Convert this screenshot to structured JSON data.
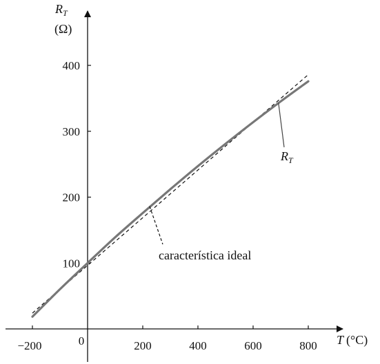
{
  "chart_data": {
    "type": "line",
    "x_axis": {
      "label_var": "T",
      "label_unit": "(°C)",
      "ticks": [
        {
          "value": -200,
          "label": "−200"
        },
        {
          "value": 0,
          "label": "0"
        },
        {
          "value": 200,
          "label": "200"
        },
        {
          "value": 400,
          "label": "400"
        },
        {
          "value": 600,
          "label": "600"
        },
        {
          "value": 800,
          "label": "800"
        }
      ],
      "range": [
        -200,
        800
      ]
    },
    "y_axis": {
      "label_var": "R",
      "label_sub": "T",
      "label_unit": "(Ω)",
      "ticks": [
        {
          "value": 100,
          "label": "100"
        },
        {
          "value": 200,
          "label": "200"
        },
        {
          "value": 300,
          "label": "300"
        },
        {
          "value": 400,
          "label": "400"
        }
      ],
      "range": [
        0,
        400
      ]
    },
    "series": [
      {
        "name": "R_T",
        "label_var": "R",
        "label_sub": "T",
        "style": "solid",
        "color": "#777777",
        "x": [
          -200,
          -100,
          0,
          100,
          200,
          300,
          400,
          500,
          600,
          700,
          800
        ],
        "y": [
          18.5,
          60.3,
          100,
          139.1,
          175.9,
          212.0,
          247.1,
          280.9,
          313.7,
          345.3,
          375.8
        ]
      },
      {
        "name": "característica ideal",
        "style": "dashed",
        "color": "#111111",
        "x": [
          -200,
          800
        ],
        "y": [
          24,
          386
        ]
      }
    ],
    "annotations": [
      {
        "text": "característica ideal",
        "series": "característica ideal"
      },
      {
        "text_var": "R",
        "text_sub": "T",
        "series": "R_T"
      }
    ],
    "grid": false,
    "legend": "none"
  }
}
